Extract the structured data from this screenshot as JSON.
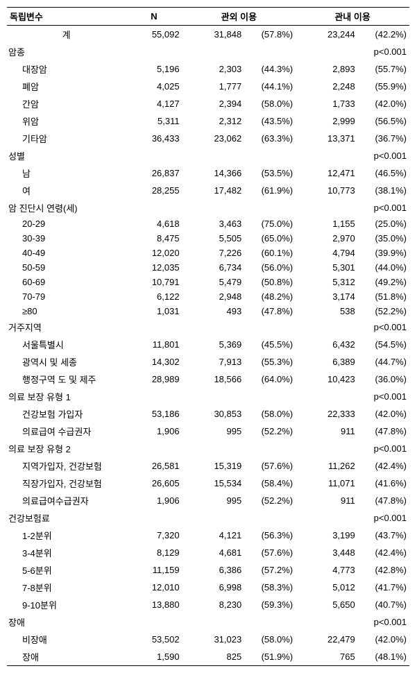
{
  "headers": {
    "var": "독립변수",
    "n": "N",
    "out": "관외 이용",
    "in": "관내 이용"
  },
  "total": {
    "label": "계",
    "n": "55,092",
    "out_n": "31,848",
    "out_p": "(57.8%)",
    "in_n": "23,244",
    "in_p": "(42.2%)"
  },
  "sections": [
    {
      "title": "암종",
      "pval": "p<0.001",
      "rows": [
        {
          "label": "대장암",
          "n": "5,196",
          "out_n": "2,303",
          "out_p": "(44.3%)",
          "in_n": "2,893",
          "in_p": "(55.7%)"
        },
        {
          "label": "폐암",
          "n": "4,025",
          "out_n": "1,777",
          "out_p": "(44.1%)",
          "in_n": "2,248",
          "in_p": "(55.9%)"
        },
        {
          "label": "간암",
          "n": "4,127",
          "out_n": "2,394",
          "out_p": "(58.0%)",
          "in_n": "1,733",
          "in_p": "(42.0%)"
        },
        {
          "label": "위암",
          "n": "5,311",
          "out_n": "2,312",
          "out_p": "(43.5%)",
          "in_n": "2,999",
          "in_p": "(56.5%)"
        },
        {
          "label": "기타암",
          "n": "36,433",
          "out_n": "23,062",
          "out_p": "(63.3%)",
          "in_n": "13,371",
          "in_p": "(36.7%)"
        }
      ]
    },
    {
      "title": "성별",
      "pval": "p<0.001",
      "rows": [
        {
          "label": "남",
          "n": "26,837",
          "out_n": "14,366",
          "out_p": "(53.5%)",
          "in_n": "12,471",
          "in_p": "(46.5%)"
        },
        {
          "label": "여",
          "n": "28,255",
          "out_n": "17,482",
          "out_p": "(61.9%)",
          "in_n": "10,773",
          "in_p": "(38.1%)"
        }
      ]
    },
    {
      "title": "암 진단시 연령(세)",
      "pval": "p<0.001",
      "rows": [
        {
          "label": "20-29",
          "n": "4,618",
          "out_n": "3,463",
          "out_p": "(75.0%)",
          "in_n": "1,155",
          "in_p": "(25.0%)"
        },
        {
          "label": "30-39",
          "n": "8,475",
          "out_n": "5,505",
          "out_p": "(65.0%)",
          "in_n": "2,970",
          "in_p": "(35.0%)"
        },
        {
          "label": "40-49",
          "n": "12,020",
          "out_n": "7,226",
          "out_p": "(60.1%)",
          "in_n": "4,794",
          "in_p": "(39.9%)"
        },
        {
          "label": "50-59",
          "n": "12,035",
          "out_n": "6,734",
          "out_p": "(56.0%)",
          "in_n": "5,301",
          "in_p": "(44.0%)"
        },
        {
          "label": "60-69",
          "n": "10,791",
          "out_n": "5,479",
          "out_p": "(50.8%)",
          "in_n": "5,312",
          "in_p": "(49.2%)"
        },
        {
          "label": "70-79",
          "n": "6,122",
          "out_n": "2,948",
          "out_p": "(48.2%)",
          "in_n": "3,174",
          "in_p": "(51.8%)"
        },
        {
          "label": "≥80",
          "n": "1,031",
          "out_n": "493",
          "out_p": "(47.8%)",
          "in_n": "538",
          "in_p": "(52.2%)"
        }
      ]
    },
    {
      "title": "거주지역",
      "pval": "p<0.001",
      "rows": [
        {
          "label": "서울특별시",
          "n": "11,801",
          "out_n": "5,369",
          "out_p": "(45.5%)",
          "in_n": "6,432",
          "in_p": "(54.5%)"
        },
        {
          "label": "광역시 및 세종",
          "n": "14,302",
          "out_n": "7,913",
          "out_p": "(55.3%)",
          "in_n": "6,389",
          "in_p": "(44.7%)"
        },
        {
          "label": "행정구역 도 및 제주",
          "n": "28,989",
          "out_n": "18,566",
          "out_p": "(64.0%)",
          "in_n": "10,423",
          "in_p": "(36.0%)"
        }
      ]
    },
    {
      "title": "의료 보장 유형 1",
      "pval": "p<0.001",
      "rows": [
        {
          "label": "건강보험 가입자",
          "n": "53,186",
          "out_n": "30,853",
          "out_p": "(58.0%)",
          "in_n": "22,333",
          "in_p": "(42.0%)"
        },
        {
          "label": "의료급여 수급권자",
          "n": "1,906",
          "out_n": "995",
          "out_p": "(52.2%)",
          "in_n": "911",
          "in_p": "(47.8%)"
        }
      ]
    },
    {
      "title": "의료 보장 유형 2",
      "pval": "p<0.001",
      "rows": [
        {
          "label": "지역가입자, 건강보험",
          "n": "26,581",
          "out_n": "15,319",
          "out_p": "(57.6%)",
          "in_n": "11,262",
          "in_p": "(42.4%)"
        },
        {
          "label": "직장가입자, 건강보험",
          "n": "26,605",
          "out_n": "15,534",
          "out_p": "(58.4%)",
          "in_n": "11,071",
          "in_p": "(41.6%)"
        },
        {
          "label": "의료급여수급권자",
          "n": "1,906",
          "out_n": "995",
          "out_p": "(52.2%)",
          "in_n": "911",
          "in_p": "(47.8%)"
        }
      ]
    },
    {
      "title": "건강보험료",
      "pval": "p<0.001",
      "rows": [
        {
          "label": "1-2분위",
          "n": "7,320",
          "out_n": "4,121",
          "out_p": "(56.3%)",
          "in_n": "3,199",
          "in_p": "(43.7%)"
        },
        {
          "label": "3-4분위",
          "n": "8,129",
          "out_n": "4,681",
          "out_p": "(57.6%)",
          "in_n": "3,448",
          "in_p": "(42.4%)"
        },
        {
          "label": "5-6분위",
          "n": "11,159",
          "out_n": "6,386",
          "out_p": "(57.2%)",
          "in_n": "4,773",
          "in_p": "(42.8%)"
        },
        {
          "label": "7-8분위",
          "n": "12,010",
          "out_n": "6,998",
          "out_p": "(58.3%)",
          "in_n": "5,012",
          "in_p": "(41.7%)"
        },
        {
          "label": "9-10분위",
          "n": "13,880",
          "out_n": "8,230",
          "out_p": "(59.3%)",
          "in_n": "5,650",
          "in_p": "(40.7%)"
        }
      ]
    },
    {
      "title": "장애",
      "pval": "p<0.001",
      "rows": [
        {
          "label": "비장애",
          "n": "53,502",
          "out_n": "31,023",
          "out_p": "(58.0%)",
          "in_n": "22,479",
          "in_p": "(42.0%)"
        },
        {
          "label": "장애",
          "n": "1,590",
          "out_n": "825",
          "out_p": "(51.9%)",
          "in_n": "765",
          "in_p": "(48.1%)"
        }
      ]
    }
  ]
}
